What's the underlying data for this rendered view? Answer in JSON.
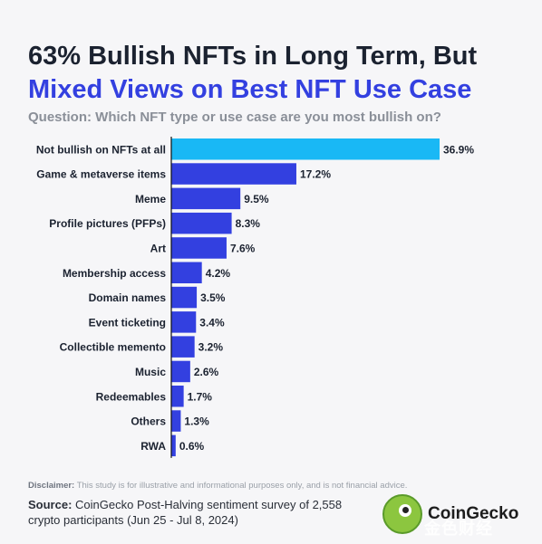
{
  "header": {
    "title_line1": "63% Bullish NFTs in Long Term, But",
    "title_line2": "Mixed Views on Best NFT Use Case",
    "subtitle": "Question: Which NFT type or use case are you most bullish on?"
  },
  "chart_data": {
    "type": "bar",
    "orientation": "horizontal",
    "categories": [
      "Not bullish on NFTs at all",
      "Game & metaverse items",
      "Meme",
      "Profile pictures (PFPs)",
      "Art",
      "Membership access",
      "Domain names",
      "Event ticketing",
      "Collectible memento",
      "Music",
      "Redeemables",
      "Others",
      "RWA"
    ],
    "values": [
      36.9,
      17.2,
      9.5,
      8.3,
      7.6,
      4.2,
      3.5,
      3.4,
      3.2,
      2.6,
      1.7,
      1.3,
      0.6
    ],
    "value_labels": [
      "36.9%",
      "17.2%",
      "9.5%",
      "8.3%",
      "7.6%",
      "4.2%",
      "3.5%",
      "3.4%",
      "3.2%",
      "2.6%",
      "1.7%",
      "1.3%",
      "0.6%"
    ],
    "colors": {
      "highlight": "#19b8f5",
      "bar": "#3340e0",
      "axis": "#111111",
      "label": "#1b2230"
    },
    "highlight_index": 0,
    "grid": false,
    "legend": "none"
  },
  "footer": {
    "disclaimer_label": "Disclaimer:",
    "disclaimer_text": " This study is for illustrative and informational purposes only, and is not financial advice.",
    "source_label": "Source:",
    "source_text": " CoinGecko Post-Halving sentiment survey of 2,558 crypto participants (Jun 25 - Jul 8, 2024)",
    "logo_text": "CoinGecko",
    "watermark_text": "金色财经"
  }
}
